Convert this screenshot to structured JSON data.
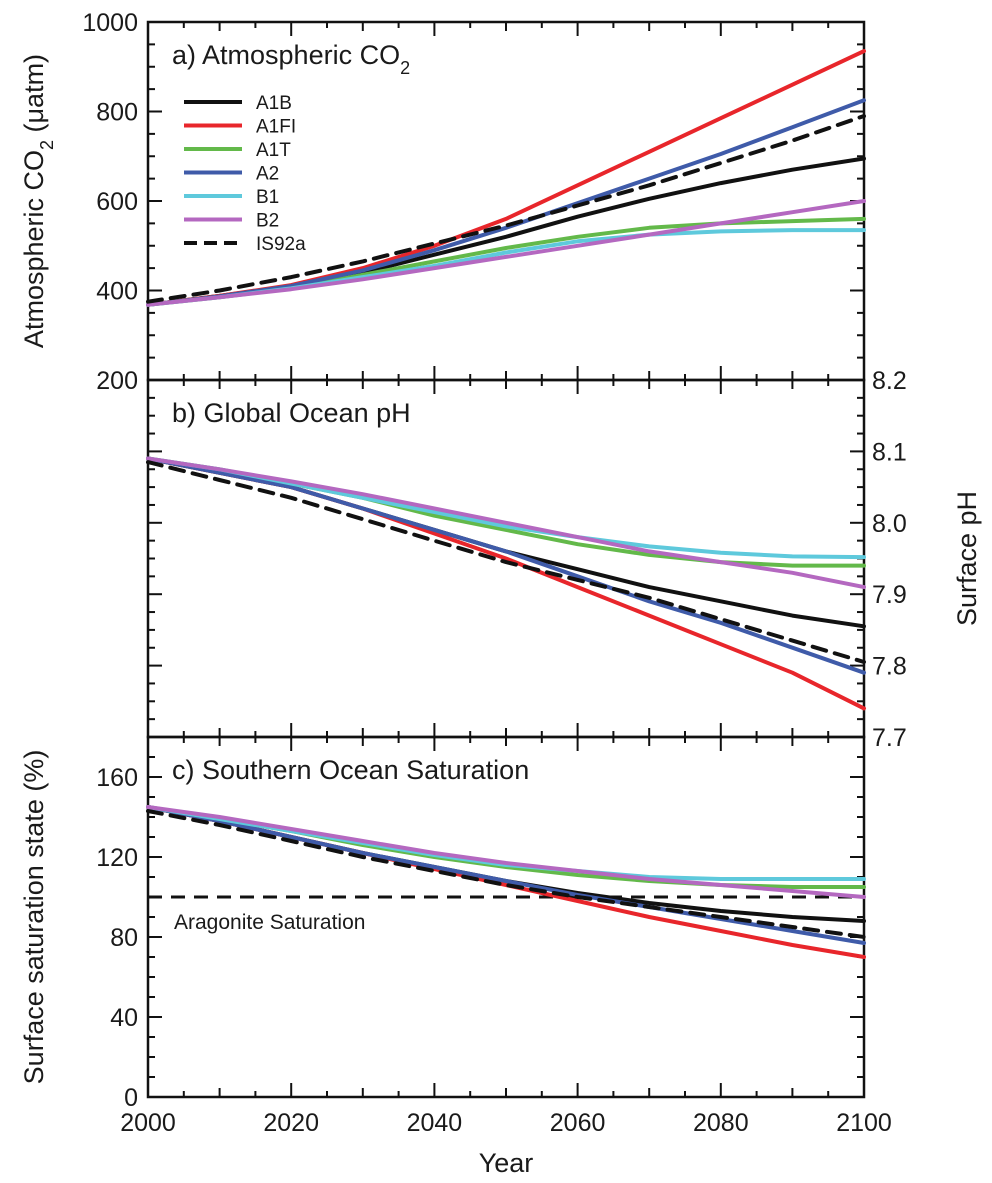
{
  "chart_data": {
    "type": "line",
    "x_label": "Year",
    "x_ticks": [
      2000,
      2020,
      2040,
      2060,
      2080,
      2100
    ],
    "xlim": [
      2000,
      2100
    ],
    "legend_placement": "top-left inside panel a",
    "colors": {
      "A1B": "#111111",
      "A1FI": "#e8262b",
      "A1T": "#63b94a",
      "A2": "#3f5ba9",
      "B1": "#5ec9dc",
      "B2": "#b468c0",
      "IS92a": "#111111"
    },
    "legend": [
      {
        "name": "A1B",
        "style": "solid"
      },
      {
        "name": "A1FI",
        "style": "solid"
      },
      {
        "name": "A1T",
        "style": "solid"
      },
      {
        "name": "A2",
        "style": "solid"
      },
      {
        "name": "B1",
        "style": "solid"
      },
      {
        "name": "B2",
        "style": "solid"
      },
      {
        "name": "IS92a",
        "style": "dashed"
      }
    ],
    "panels": [
      {
        "id": "a",
        "title_main": "a) Atmospheric CO",
        "title_sub": "2",
        "ylabel_main": "Atmospheric CO",
        "ylabel_sub": "2",
        "ylabel_tail": " (μatm)",
        "y_axis_side": "left",
        "ylim": [
          200,
          1000
        ],
        "y_ticks": [
          200,
          400,
          600,
          800,
          1000
        ],
        "y_tick_labels": [
          "200",
          "400",
          "600",
          "800",
          "1000"
        ],
        "series": [
          {
            "name": "A1B",
            "x": [
              2000,
              2010,
              2020,
              2030,
              2040,
              2050,
              2060,
              2070,
              2080,
              2090,
              2100
            ],
            "y": [
              368,
              388,
              410,
              440,
              480,
              520,
              565,
              605,
              640,
              670,
              695
            ]
          },
          {
            "name": "A1FI",
            "x": [
              2000,
              2010,
              2020,
              2030,
              2040,
              2050,
              2060,
              2070,
              2080,
              2090,
              2100
            ],
            "y": [
              368,
              388,
              412,
              450,
              500,
              560,
              635,
              710,
              785,
              860,
              935
            ]
          },
          {
            "name": "A1T",
            "x": [
              2000,
              2010,
              2020,
              2030,
              2040,
              2050,
              2060,
              2070,
              2080,
              2090,
              2100
            ],
            "y": [
              368,
              385,
              405,
              435,
              465,
              495,
              520,
              540,
              550,
              555,
              560
            ]
          },
          {
            "name": "A2",
            "x": [
              2000,
              2010,
              2020,
              2030,
              2040,
              2050,
              2060,
              2070,
              2080,
              2090,
              2100
            ],
            "y": [
              368,
              387,
              410,
              445,
              490,
              540,
              595,
              650,
              705,
              765,
              825
            ]
          },
          {
            "name": "B1",
            "x": [
              2000,
              2010,
              2020,
              2030,
              2040,
              2050,
              2060,
              2070,
              2080,
              2090,
              2100
            ],
            "y": [
              368,
              385,
              405,
              430,
              455,
              485,
              510,
              525,
              532,
              535,
              535
            ]
          },
          {
            "name": "B2",
            "x": [
              2000,
              2010,
              2020,
              2030,
              2040,
              2050,
              2060,
              2070,
              2080,
              2090,
              2100
            ],
            "y": [
              368,
              385,
              403,
              425,
              450,
              475,
              500,
              525,
              550,
              575,
              600
            ]
          },
          {
            "name": "IS92a",
            "x": [
              2000,
              2010,
              2020,
              2030,
              2040,
              2050,
              2060,
              2070,
              2080,
              2090,
              2100
            ],
            "y": [
              375,
              400,
              430,
              465,
              505,
              545,
              590,
              635,
              685,
              735,
              790
            ]
          }
        ]
      },
      {
        "id": "b",
        "title_main": "b) Global Ocean pH",
        "title_sub": "",
        "ylabel_main": "Surface pH",
        "ylabel_sub": "",
        "ylabel_tail": "",
        "y_axis_side": "right",
        "ylim": [
          7.7,
          8.2
        ],
        "y_ticks": [
          7.7,
          7.8,
          7.9,
          8.0,
          8.1,
          8.2
        ],
        "y_tick_labels": [
          "7.7",
          "7.8",
          "7.9",
          "8.0",
          "8.1",
          "8.2"
        ],
        "series": [
          {
            "name": "A1B",
            "x": [
              2000,
              2010,
              2020,
              2030,
              2040,
              2050,
              2060,
              2070,
              2080,
              2090,
              2100
            ],
            "y": [
              8.09,
              8.07,
              8.05,
              8.02,
              7.99,
              7.96,
              7.935,
              7.91,
              7.89,
              7.87,
              7.855
            ]
          },
          {
            "name": "A1FI",
            "x": [
              2000,
              2010,
              2020,
              2030,
              2040,
              2050,
              2060,
              2070,
              2080,
              2090,
              2100
            ],
            "y": [
              8.09,
              8.07,
              8.05,
              8.02,
              7.985,
              7.95,
              7.91,
              7.87,
              7.83,
              7.79,
              7.74
            ]
          },
          {
            "name": "A1T",
            "x": [
              2000,
              2010,
              2020,
              2030,
              2040,
              2050,
              2060,
              2070,
              2080,
              2090,
              2100
            ],
            "y": [
              8.09,
              8.075,
              8.055,
              8.035,
              8.01,
              7.99,
              7.97,
              7.955,
              7.945,
              7.94,
              7.94
            ]
          },
          {
            "name": "A2",
            "x": [
              2000,
              2010,
              2020,
              2030,
              2040,
              2050,
              2060,
              2070,
              2080,
              2090,
              2100
            ],
            "y": [
              8.09,
              8.07,
              8.05,
              8.02,
              7.99,
              7.96,
              7.925,
              7.89,
              7.86,
              7.825,
              7.79
            ]
          },
          {
            "name": "B1",
            "x": [
              2000,
              2010,
              2020,
              2030,
              2040,
              2050,
              2060,
              2070,
              2080,
              2090,
              2100
            ],
            "y": [
              8.09,
              8.075,
              8.055,
              8.035,
              8.015,
              7.995,
              7.98,
              7.967,
              7.958,
              7.953,
              7.952
            ]
          },
          {
            "name": "B2",
            "x": [
              2000,
              2010,
              2020,
              2030,
              2040,
              2050,
              2060,
              2070,
              2080,
              2090,
              2100
            ],
            "y": [
              8.09,
              8.075,
              8.058,
              8.04,
              8.02,
              8.0,
              7.98,
              7.96,
              7.945,
              7.93,
              7.91
            ]
          },
          {
            "name": "IS92a",
            "x": [
              2000,
              2010,
              2020,
              2030,
              2040,
              2050,
              2060,
              2070,
              2080,
              2090,
              2100
            ],
            "y": [
              8.085,
              8.06,
              8.035,
              8.005,
              7.975,
              7.945,
              7.92,
              7.895,
              7.865,
              7.835,
              7.805
            ]
          }
        ]
      },
      {
        "id": "c",
        "title_main": "c) Southern Ocean Saturation",
        "title_sub": "",
        "ylabel_main": "Surface saturation state (%)",
        "ylabel_sub": "",
        "ylabel_tail": "",
        "y_axis_side": "left",
        "ylim": [
          0,
          180
        ],
        "y_ticks": [
          0,
          40,
          80,
          120,
          160
        ],
        "y_tick_labels": [
          "0",
          "40",
          "80",
          "120",
          "160"
        ],
        "reference_line": {
          "y": 100,
          "label": "Aragonite Saturation",
          "style": "dashed"
        },
        "series": [
          {
            "name": "A1B",
            "x": [
              2000,
              2010,
              2020,
              2030,
              2040,
              2050,
              2060,
              2070,
              2080,
              2090,
              2100
            ],
            "y": [
              145,
              138,
              130,
              122,
              115,
              108,
              102,
              97,
              93,
              90,
              88
            ]
          },
          {
            "name": "A1FI",
            "x": [
              2000,
              2010,
              2020,
              2030,
              2040,
              2050,
              2060,
              2070,
              2080,
              2090,
              2100
            ],
            "y": [
              145,
              138,
              130,
              122,
              114,
              106,
              98,
              90,
              83,
              76,
              70
            ]
          },
          {
            "name": "A1T",
            "x": [
              2000,
              2010,
              2020,
              2030,
              2040,
              2050,
              2060,
              2070,
              2080,
              2090,
              2100
            ],
            "y": [
              145,
              139,
              133,
              126,
              120,
              115,
              111,
              108,
              106,
              105,
              105
            ]
          },
          {
            "name": "A2",
            "x": [
              2000,
              2010,
              2020,
              2030,
              2040,
              2050,
              2060,
              2070,
              2080,
              2090,
              2100
            ],
            "y": [
              145,
              138,
              130,
              122,
              115,
              108,
              101,
              95,
              89,
              83,
              77
            ]
          },
          {
            "name": "B1",
            "x": [
              2000,
              2010,
              2020,
              2030,
              2040,
              2050,
              2060,
              2070,
              2080,
              2090,
              2100
            ],
            "y": [
              145,
              139,
              133,
              127,
              121,
              116,
              113,
              110,
              109,
              109,
              109
            ]
          },
          {
            "name": "B2",
            "x": [
              2000,
              2010,
              2020,
              2030,
              2040,
              2050,
              2060,
              2070,
              2080,
              2090,
              2100
            ],
            "y": [
              145,
              140,
              134,
              128,
              122,
              117,
              113,
              109,
              106,
              103,
              100
            ]
          },
          {
            "name": "IS92a",
            "x": [
              2000,
              2010,
              2020,
              2030,
              2040,
              2050,
              2060,
              2070,
              2080,
              2090,
              2100
            ],
            "y": [
              143,
              136,
              128,
              120,
              113,
              106,
              100,
              95,
              90,
              85,
              80
            ]
          }
        ]
      }
    ]
  }
}
